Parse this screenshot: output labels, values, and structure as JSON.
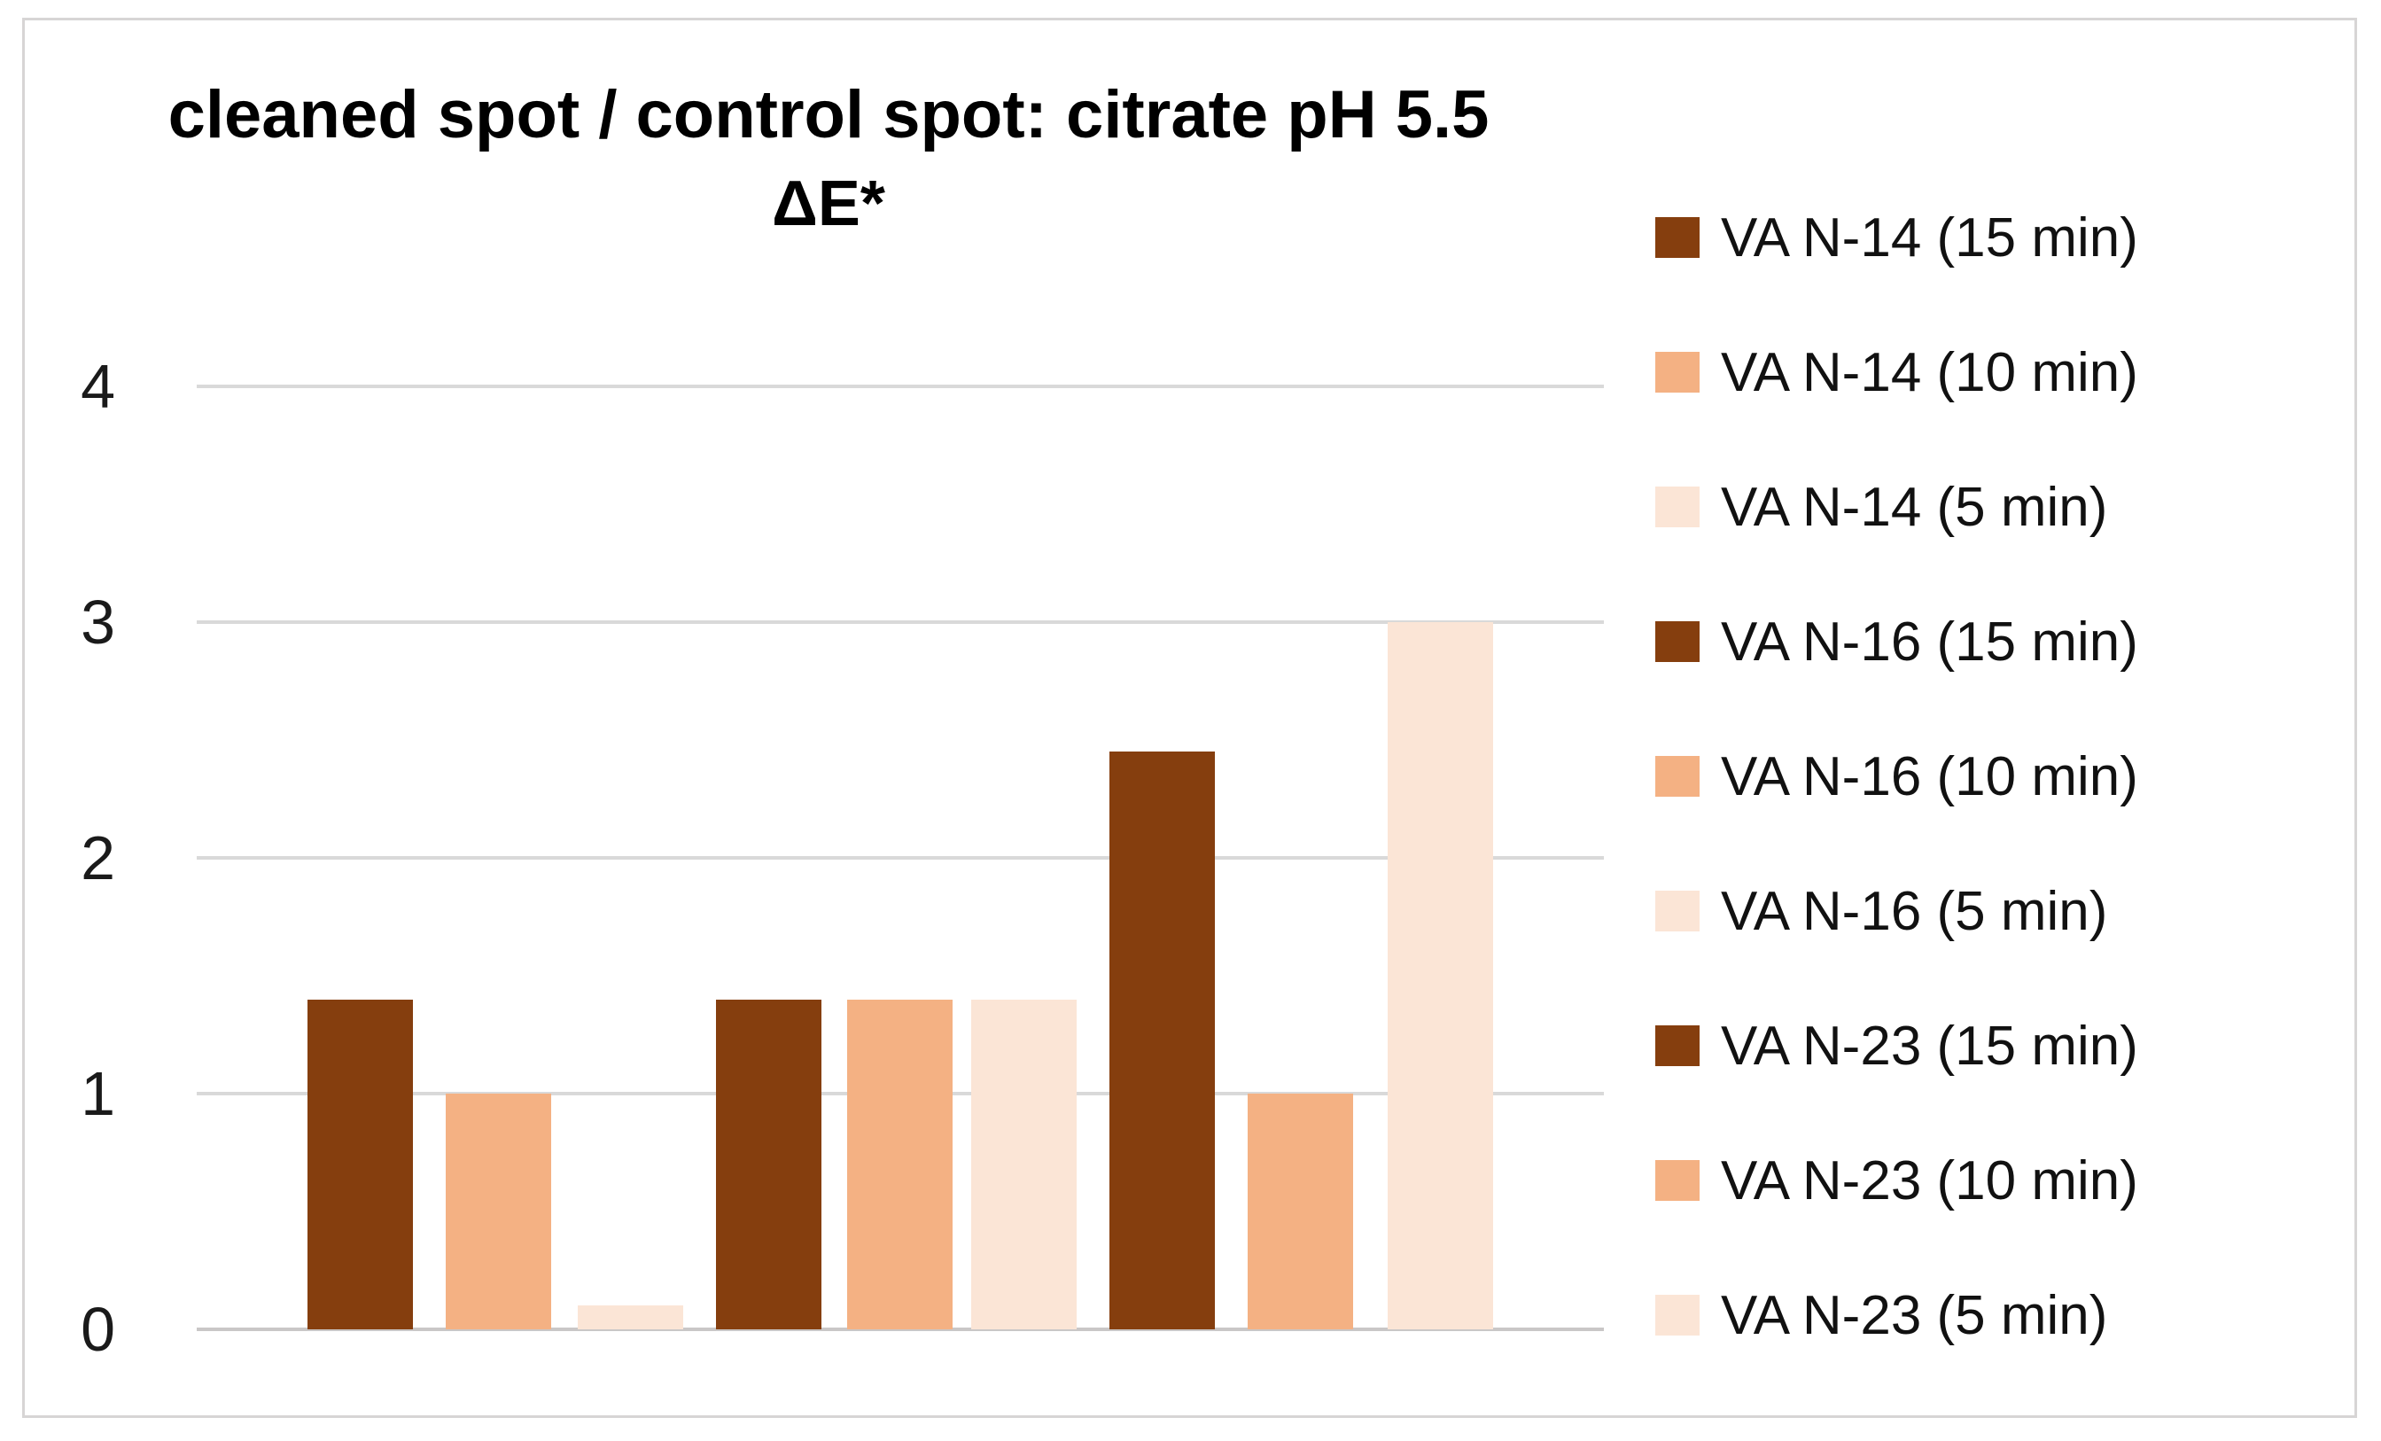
{
  "chart_data": {
    "type": "bar",
    "title": "cleaned spot / control spot: citrate pH 5.5",
    "subtitle": "ΔE*",
    "ylim": [
      0,
      4
    ],
    "yticks": [
      4,
      3,
      2,
      1,
      0
    ],
    "grid": true,
    "legend_position": "right",
    "colors": {
      "15min": "#853E0E",
      "10min": "#F4B183",
      "5min": "#FBE5D6",
      "gridline": "#D9D9D9",
      "baseline": "#C9C7C7"
    },
    "categories": [
      "VA N-14",
      "VA N-16",
      "VA N-23"
    ],
    "series": [
      {
        "name": "15 min",
        "color_key": "15min",
        "values": [
          1.4,
          1.4,
          2.45
        ]
      },
      {
        "name": "10 min",
        "color_key": "10min",
        "values": [
          1.0,
          1.4,
          1.0
        ]
      },
      {
        "name": "5 min",
        "color_key": "5min",
        "values": [
          0.1,
          1.4,
          3.0
        ]
      }
    ],
    "bars": [
      {
        "label": "VA N-14 (15 min)",
        "color_key": "15min",
        "value": 1.4
      },
      {
        "label": "VA N-14 (10 min)",
        "color_key": "10min",
        "value": 1.0
      },
      {
        "label": "VA N-14 (5 min)",
        "color_key": "5min",
        "value": 0.1
      },
      {
        "label": "VA N-16 (15 min)",
        "color_key": "15min",
        "value": 1.4
      },
      {
        "label": "VA N-16 (10 min)",
        "color_key": "10min",
        "value": 1.4
      },
      {
        "label": "VA N-16 (5 min)",
        "color_key": "5min",
        "value": 1.4
      },
      {
        "label": "VA N-23 (15 min)",
        "color_key": "15min",
        "value": 2.45
      },
      {
        "label": "VA N-23 (10 min)",
        "color_key": "10min",
        "value": 1.0
      },
      {
        "label": "VA N-23 (5 min)",
        "color_key": "5min",
        "value": 3.0
      }
    ],
    "legend": [
      {
        "label": "VA N-14 (15 min)",
        "color_key": "15min"
      },
      {
        "label": "VA N-14 (10 min)",
        "color_key": "10min"
      },
      {
        "label": "VA N-14 (5 min)",
        "color_key": "5min"
      },
      {
        "label": "VA N-16 (15 min)",
        "color_key": "15min"
      },
      {
        "label": "VA N-16 (10 min)",
        "color_key": "10min"
      },
      {
        "label": "VA N-16 (5 min)",
        "color_key": "5min"
      },
      {
        "label": "VA N-23 (15 min)",
        "color_key": "15min"
      },
      {
        "label": "VA N-23 (10 min)",
        "color_key": "10min"
      },
      {
        "label": "VA N-23 (5 min)",
        "color_key": "5min"
      }
    ]
  }
}
